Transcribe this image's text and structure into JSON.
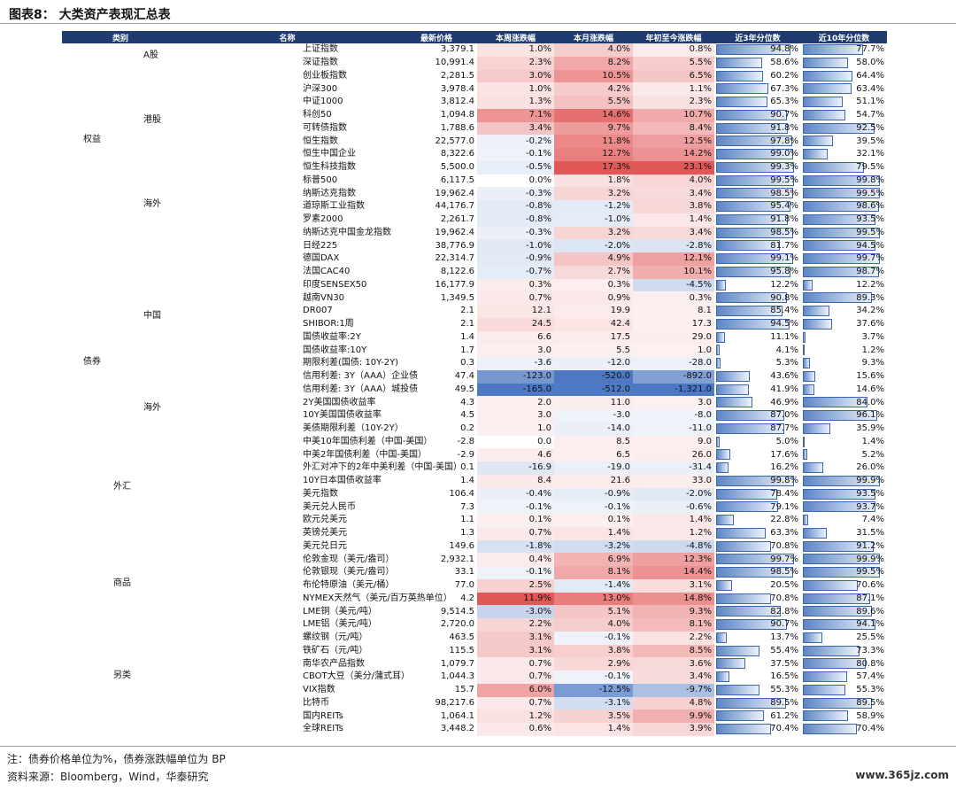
{
  "title": "图表8：  大类资产表现汇总表",
  "headers": [
    "类别",
    "名称",
    "最新价格",
    "本周涨跌幅",
    "本月涨跌幅",
    "年初至今涨跌幅",
    "近3年分位数",
    "近10年分位数"
  ],
  "categories": [
    {
      "text": "权益",
      "top": 152
    },
    {
      "text": "A股",
      "top": 57
    },
    {
      "text": "港股",
      "top": 130
    },
    {
      "text": "海外",
      "top": 225
    },
    {
      "text": "债券",
      "top": 403
    },
    {
      "text": "中国",
      "top": 351
    },
    {
      "text": "海外",
      "top": 455
    },
    {
      "text": "外汇",
      "top": 544
    },
    {
      "text": "商品",
      "top": 653
    },
    {
      "text": "另类",
      "top": 757
    }
  ],
  "rows": [
    [
      "上证指数",
      "3,379.1",
      "1.0%",
      "4.0%",
      "0.8%",
      "94.8%",
      "77.7%"
    ],
    [
      "深证指数",
      "10,991.4",
      "2.3%",
      "8.2%",
      "5.5%",
      "58.6%",
      "58.0%"
    ],
    [
      "创业板指数",
      "2,281.5",
      "3.0%",
      "10.5%",
      "6.5%",
      "60.2%",
      "64.4%"
    ],
    [
      "沪深300",
      "3,978.4",
      "1.0%",
      "4.2%",
      "1.1%",
      "67.3%",
      "63.4%"
    ],
    [
      "中证1000",
      "3,812.4",
      "1.3%",
      "5.5%",
      "2.3%",
      "65.3%",
      "51.1%"
    ],
    [
      "科创50",
      "1,094.8",
      "7.1%",
      "14.6%",
      "10.7%",
      "90.7%",
      "54.7%"
    ],
    [
      "可转债指数",
      "1,788.6",
      "3.4%",
      "9.7%",
      "8.4%",
      "91.8%",
      "92.5%"
    ],
    [
      "恒生指数",
      "22,577.0",
      "-0.2%",
      "11.8%",
      "12.5%",
      "97.8%",
      "39.5%"
    ],
    [
      "恒生中国企业",
      "8,322.6",
      "-0.1%",
      "12.7%",
      "14.2%",
      "99.0%",
      "32.1%"
    ],
    [
      "恒生科技指数",
      "5,500.0",
      "-0.5%",
      "17.3%",
      "23.1%",
      "99.3%",
      "79.5%"
    ],
    [
      "标普500",
      "6,117.5",
      "0.0%",
      "1.8%",
      "4.0%",
      "99.5%",
      "99.8%"
    ],
    [
      "纳斯达克指数",
      "19,962.4",
      "-0.3%",
      "3.2%",
      "3.4%",
      "98.5%",
      "99.5%"
    ],
    [
      "道琼斯工业指数",
      "44,176.7",
      "-0.8%",
      "-1.2%",
      "3.8%",
      "95.4%",
      "98.6%"
    ],
    [
      "罗素2000",
      "2,261.7",
      "-0.8%",
      "-1.0%",
      "1.4%",
      "91.8%",
      "93.5%"
    ],
    [
      "纳斯达克中国金龙指数",
      "19,962.4",
      "-0.3%",
      "3.2%",
      "3.4%",
      "98.5%",
      "99.5%"
    ],
    [
      "日经225",
      "38,776.9",
      "-1.0%",
      "-2.0%",
      "-2.8%",
      "81.7%",
      "94.5%"
    ],
    [
      "德国DAX",
      "22,314.7",
      "-0.9%",
      "4.9%",
      "12.1%",
      "99.1%",
      "99.7%"
    ],
    [
      "法国CAC40",
      "8,122.6",
      "-0.7%",
      "2.7%",
      "10.1%",
      "95.8%",
      "98.7%"
    ],
    [
      "印度SENSEX50",
      "16,177.9",
      "0.3%",
      "0.3%",
      "-4.5%",
      "12.2%",
      "12.2%"
    ],
    [
      "越南VN30",
      "1,349.5",
      "0.7%",
      "0.9%",
      "0.3%",
      "90.8%",
      "89.3%"
    ],
    [
      "DR007",
      "2.1",
      "12.1",
      "19.9",
      "8.1",
      "85.4%",
      "34.2%"
    ],
    [
      "SHIBOR:1周",
      "2.1",
      "24.5",
      "42.4",
      "17.3",
      "94.5%",
      "37.6%"
    ],
    [
      "国债收益率:2Y",
      "1.4",
      "6.6",
      "17.5",
      "29.0",
      "11.1%",
      "3.7%"
    ],
    [
      "国债收益率:10Y",
      "1.7",
      "3.0",
      "5.5",
      "1.0",
      "4.1%",
      "1.2%"
    ],
    [
      "期限利差(国债: 10Y-2Y)",
      "0.3",
      "-3.6",
      "-12.0",
      "-28.0",
      "5.3%",
      "9.3%"
    ],
    [
      "信用利差: 3Y（AAA）企业债",
      "47.4",
      "-123.0",
      "-520.0",
      "-892.0",
      "43.6%",
      "15.6%"
    ],
    [
      "信用利差: 3Y（AAA）城投债",
      "49.5",
      "-165.0",
      "-512.0",
      "-1,321.0",
      "41.9%",
      "14.6%"
    ],
    [
      "2Y美国国债收益率",
      "4.3",
      "2.0",
      "11.0",
      "3.0",
      "46.9%",
      "84.0%"
    ],
    [
      "10Y美国国债收益率",
      "4.5",
      "3.0",
      "-3.0",
      "-8.0",
      "87.0%",
      "96.1%"
    ],
    [
      "美债期限利差（10Y-2Y）",
      "0.2",
      "1.0",
      "-14.0",
      "-11.0",
      "87.7%",
      "35.9%"
    ],
    [
      "中美10年国债利差（中国-美国）",
      "-2.8",
      "0.0",
      "8.5",
      "9.0",
      "5.0%",
      "1.4%"
    ],
    [
      "中美2年国债利差（中国-美国）",
      "-2.9",
      "4.6",
      "6.5",
      "26.0",
      "17.6%",
      "5.2%"
    ],
    [
      "外汇对冲下的2年中美利差（中国-美国）",
      "0.1",
      "-16.9",
      "-19.0",
      "-31.4",
      "16.2%",
      "26.0%"
    ],
    [
      "10Y日本国债收益率",
      "1.4",
      "8.4",
      "21.6",
      "33.0",
      "99.8%",
      "99.9%"
    ],
    [
      "美元指数",
      "106.4",
      "-0.4%",
      "-0.9%",
      "-2.0%",
      "78.4%",
      "93.5%"
    ],
    [
      "美元兑人民币",
      "7.3",
      "-0.1%",
      "-0.1%",
      "-0.6%",
      "79.1%",
      "93.7%"
    ],
    [
      "欧元兑美元",
      "1.1",
      "0.1%",
      "0.1%",
      "1.4%",
      "22.8%",
      "7.4%"
    ],
    [
      "英镑兑美元",
      "1.3",
      "0.7%",
      "1.4%",
      "1.2%",
      "63.3%",
      "31.5%"
    ],
    [
      "美元兑日元",
      "149.6",
      "-1.8%",
      "-3.2%",
      "-4.8%",
      "70.8%",
      "91.2%"
    ],
    [
      "伦敦金现（美元/盎司）",
      "2,932.1",
      "0.4%",
      "6.9%",
      "12.3%",
      "99.7%",
      "99.9%"
    ],
    [
      "伦敦银现（美元/盎司）",
      "33.1",
      "-0.1%",
      "8.1%",
      "14.4%",
      "98.5%",
      "99.5%"
    ],
    [
      "布伦特原油（美元/桶）",
      "77.0",
      "2.5%",
      "-1.4%",
      "3.1%",
      "20.5%",
      "70.6%"
    ],
    [
      "NYMEX天然气（美元/百万英热单位）",
      "4.2",
      "11.9%",
      "13.0%",
      "14.8%",
      "70.8%",
      "87.1%"
    ],
    [
      "LME铜（美元/吨）",
      "9,514.5",
      "-3.0%",
      "5.1%",
      "9.3%",
      "82.8%",
      "89.6%"
    ],
    [
      "LME铝（美元/吨）",
      "2,720.0",
      "2.2%",
      "4.0%",
      "8.1%",
      "90.7%",
      "94.1%"
    ],
    [
      "螺纹钢（元/吨）",
      "463.5",
      "3.1%",
      "-0.1%",
      "2.2%",
      "13.7%",
      "25.5%"
    ],
    [
      "铁矿石（元/吨）",
      "115.5",
      "3.1%",
      "3.8%",
      "8.5%",
      "55.4%",
      "73.3%"
    ],
    [
      "南华农产品指数",
      "1,079.7",
      "0.7%",
      "2.9%",
      "3.6%",
      "37.5%",
      "80.8%"
    ],
    [
      "CBOT大豆（美分/蒲式耳）",
      "1,044.3",
      "0.7%",
      "-0.1%",
      "3.4%",
      "16.5%",
      "57.4%"
    ],
    [
      "VIX指数",
      "15.7",
      "6.0%",
      "-12.5%",
      "-9.7%",
      "55.3%",
      "55.3%"
    ],
    [
      "比特币",
      "98,217.6",
      "0.7%",
      "-3.1%",
      "4.8%",
      "89.5%",
      "89.5%"
    ],
    [
      "国内REITs",
      "1,064.1",
      "1.2%",
      "3.5%",
      "9.9%",
      "61.2%",
      "58.9%"
    ],
    [
      "全球REITs",
      "3,448.2",
      "0.6%",
      "1.4%",
      "3.9%",
      "70.4%",
      "70.4%"
    ]
  ],
  "footnotes": {
    "note": "注：债券价格单位为%，债券涨跌幅单位为 BP",
    "source": "资料来源：Bloomberg，Wind，华泰研究"
  },
  "watermark": "www.365jz.com",
  "colors": {
    "header": "#1f3b6f",
    "positive": "#e04b4b",
    "negative": "#3f6fbf",
    "bar": "#5d86c6"
  }
}
